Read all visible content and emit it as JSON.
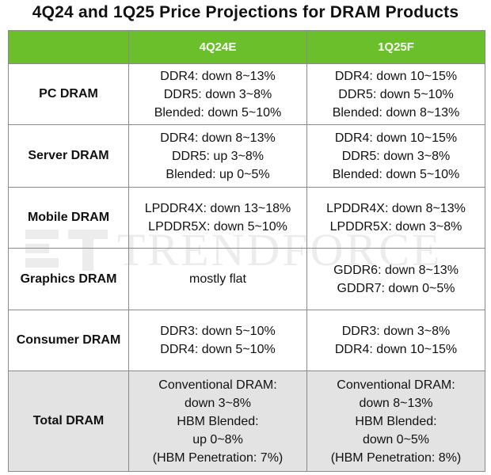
{
  "title": "4Q24 and 1Q25 Price Projections  for DRAM Products",
  "columns": [
    "",
    "4Q24E",
    "1Q25F"
  ],
  "rows": [
    {
      "category": "PC DRAM",
      "q4_24": [
        "DDR4: down 8~13%",
        "DDR5: down 3~8%",
        "Blended: down 5~10%"
      ],
      "q1_25": [
        "DDR4: down 10~15%",
        "DDR5: down 5~10%",
        "Blended: down 8~13%"
      ]
    },
    {
      "category": "Server DRAM",
      "q4_24": [
        "DDR4: down 8~13%",
        "DDR5: up 3~8%",
        "Blended: up 0~5%"
      ],
      "q1_25": [
        "DDR4: down 10~15%",
        "DDR5: down 3~8%",
        "Blended: down 5~10%"
      ]
    },
    {
      "category": "Mobile DRAM",
      "q4_24": [
        "LPDDR4X: down 13~18%",
        "LPDDR5X: down 5~10%"
      ],
      "q1_25": [
        "LPDDR4X: down 8~13%",
        "LPDDR5X: down 3~8%"
      ]
    },
    {
      "category": "Graphics DRAM",
      "q4_24": [
        "mostly flat"
      ],
      "q1_25": [
        "GDDR6: down 8~13%",
        "GDDR7: down 0~5%"
      ]
    },
    {
      "category": "Consumer DRAM",
      "q4_24": [
        "DDR3: down 5~10%",
        "DDR4: down 5~10%"
      ],
      "q1_25": [
        "DDR3: down 3~8%",
        "DDR4: down 10~15%"
      ]
    },
    {
      "category": "Total DRAM",
      "q4_24": [
        "Conventional DRAM:",
        "down 3~8%",
        "HBM Blended:",
        "up 0~8%",
        "(HBM Penetration: 7%)"
      ],
      "q1_25": [
        "Conventional DRAM:",
        "down 8~13%",
        "HBM Blended:",
        "down 0~5%",
        "(HBM Penetration: 8%)"
      ]
    }
  ],
  "watermark": {
    "text": "TRENDFORCE"
  },
  "colors": {
    "header_bg": "#6bbf2a",
    "header_text": "#ffffff",
    "total_row_bg": "#e3e3e3",
    "border": "#8a8a8a"
  }
}
